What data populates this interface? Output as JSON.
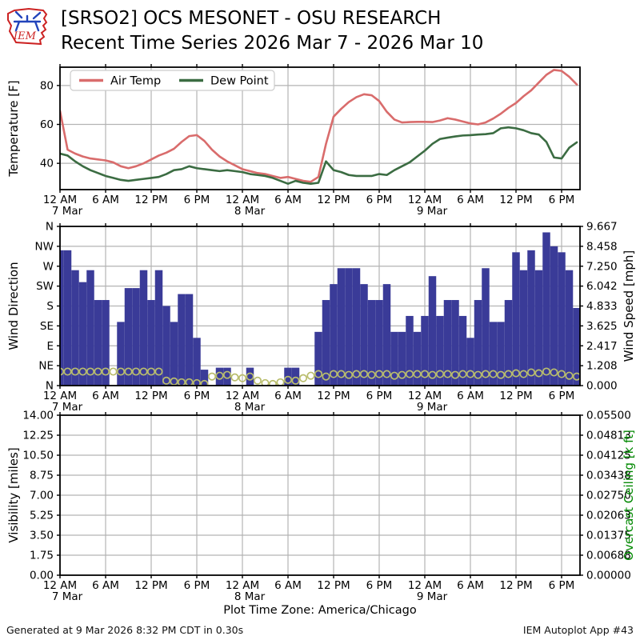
{
  "header": {
    "logo_text": "IEM",
    "title_line1": "[SRSO2] OCS MESONET - OSU RESEARCH",
    "title_line2": "Recent Time Series 2026 Mar 7 - 2026 Mar 10"
  },
  "footer": {
    "generated_text": "Generated at 9 Mar 2026 8:32 PM CDT in 0.30s",
    "app_text": "IEM Autoplot App #43"
  },
  "colors": {
    "air_temp": "#d96c6c",
    "dew_point": "#3b6c42",
    "wind_bar": "#3a3b98",
    "wind_speed_marker": "#b9bd6d",
    "grid": "#b3b3b3",
    "axis": "#000000",
    "ceiling_label": "#008800",
    "logo_red": "#cc2222",
    "logo_blue": "#2244bb"
  },
  "time_axis": {
    "start_hour": 0,
    "end_hour": 68.4,
    "tick_interval_hours": 6,
    "tick_labels": [
      "12 AM",
      "6 AM",
      "12 PM",
      "6 PM",
      "12 AM",
      "6 AM",
      "12 PM",
      "6 PM",
      "12 AM",
      "6 AM",
      "12 PM",
      "6 PM"
    ],
    "day_labels": [
      {
        "hour": 0,
        "text": "7 Mar"
      },
      {
        "hour": 24,
        "text": "8 Mar"
      },
      {
        "hour": 48,
        "text": "9 Mar"
      }
    ],
    "axis_title": "Plot Time Zone: America/Chicago"
  },
  "chart_data": [
    {
      "type": "line",
      "panel": "temperature",
      "ylabel": "Temperature [F]",
      "ylim": [
        26.5,
        89.4
      ],
      "yticks": [
        40,
        60,
        80
      ],
      "grid": true,
      "legend_position": "upper left",
      "x_unit": "hours since 2026-03-07 00:00 CST",
      "series": [
        {
          "name": "Air Temp",
          "color": "#d96c6c",
          "values": [
            67,
            47,
            45,
            43.5,
            42.5,
            42,
            41.5,
            40.5,
            38.5,
            37.5,
            38.5,
            40,
            42,
            44,
            45.5,
            47.5,
            51,
            54,
            54.5,
            51.5,
            47,
            43.5,
            41,
            39,
            37,
            36,
            35,
            34.5,
            33.5,
            32.5,
            33,
            32,
            31,
            30.5,
            33,
            50,
            64,
            68,
            71.5,
            74,
            75.5,
            75,
            72,
            66.5,
            62.5,
            61,
            61.2,
            61.3,
            61.3,
            61.2,
            62,
            63.2,
            62.5,
            61.5,
            60.5,
            60,
            61,
            63,
            65.5,
            68.5,
            71,
            74.5,
            77.5,
            81.5,
            85.5,
            88,
            87.5,
            84.5,
            80.5
          ]
        },
        {
          "name": "Dew Point",
          "color": "#3b6c42",
          "values": [
            45,
            44,
            41,
            38.5,
            36.5,
            35,
            33.5,
            32.5,
            31.5,
            31,
            31.5,
            32,
            32.5,
            33,
            34.5,
            36.5,
            37,
            38.5,
            37.5,
            37,
            36.5,
            36,
            36.5,
            36,
            35.5,
            34.5,
            34,
            33.5,
            32.5,
            31,
            29.5,
            31,
            30,
            29.5,
            30,
            41,
            36.5,
            35.5,
            34,
            33.5,
            33.5,
            33.5,
            34.5,
            34,
            36.5,
            38.5,
            40.5,
            43.5,
            46.5,
            50,
            52.5,
            53.2,
            53.8,
            54.3,
            54.5,
            54.8,
            55,
            55.5,
            58,
            58.5,
            58,
            57,
            55.5,
            54.8,
            51,
            43,
            42.5,
            48,
            50.8
          ]
        }
      ]
    },
    {
      "type": "bar",
      "panel": "wind",
      "ylabel_left": "Wind Direction",
      "yticks_left_top_to_bottom": [
        "N",
        "NW",
        "W",
        "SW",
        "S",
        "SE",
        "E",
        "NE",
        "N"
      ],
      "ylabel_right": "Wind Speed [mph]",
      "yticks_right_top_to_bottom": [
        "9.667",
        "8.458",
        "7.250",
        "6.042",
        "4.833",
        "3.625",
        "2.417",
        "1.208",
        "0.000"
      ],
      "right_axis_max": 9.667,
      "direction_units": "0=N(bottom) 1=NE 2=E 3=SE 4=S 5=SW 6=W 7=NW 8=N(top)",
      "direction_values": [
        6.8,
        6.8,
        5.8,
        5.2,
        5.8,
        4.3,
        4.3,
        0,
        3.2,
        4.9,
        4.9,
        5.8,
        4.3,
        5.8,
        4.0,
        3.2,
        4.6,
        4.6,
        2.4,
        0.8,
        0,
        0.9,
        0.9,
        0,
        0,
        0.9,
        0,
        0,
        0,
        0,
        0.9,
        0.9,
        0,
        0,
        2.7,
        4.3,
        5.1,
        5.9,
        5.9,
        5.9,
        5.1,
        4.3,
        4.3,
        5.1,
        2.7,
        2.7,
        3.5,
        2.7,
        3.5,
        5.5,
        3.5,
        4.3,
        4.3,
        3.5,
        2.4,
        4.3,
        5.9,
        3.2,
        3.2,
        4.3,
        6.7,
        5.8,
        6.8,
        5.8,
        7.7,
        7.0,
        6.7,
        5.8,
        3.9
      ],
      "speed_values_mph": [
        0.85,
        0.85,
        0.85,
        0.85,
        0.85,
        0.85,
        0.85,
        0.85,
        0.85,
        0.85,
        0.85,
        0.85,
        0.85,
        0.85,
        0.3,
        0.25,
        0.2,
        0.2,
        0.15,
        0.1,
        0.55,
        0.6,
        0.65,
        0.5,
        0.45,
        0.55,
        0.3,
        0.15,
        0.1,
        0.2,
        0.35,
        0.3,
        0.45,
        0.6,
        0.7,
        0.55,
        0.7,
        0.7,
        0.65,
        0.7,
        0.7,
        0.65,
        0.7,
        0.7,
        0.6,
        0.65,
        0.7,
        0.7,
        0.7,
        0.65,
        0.7,
        0.7,
        0.65,
        0.7,
        0.7,
        0.65,
        0.7,
        0.7,
        0.65,
        0.7,
        0.75,
        0.7,
        0.8,
        0.75,
        0.85,
        0.8,
        0.7,
        0.6,
        0.55
      ]
    },
    {
      "type": "empty",
      "panel": "visibility",
      "ylabel_left": "Visibility [miles]",
      "yticks_left_top_to_bottom": [
        "14.00",
        "12.25",
        "10.50",
        "8.75",
        "7.00",
        "5.25",
        "3.50",
        "1.75",
        "0.00"
      ],
      "ylabel_right": "Overcast Ceiling [k ft]",
      "yticks_right_top_to_bottom": [
        "0.05500",
        "0.04813",
        "0.04125",
        "0.03438",
        "0.02750",
        "0.02063",
        "0.01375",
        "0.00688",
        "0.00000"
      ],
      "series": []
    }
  ]
}
